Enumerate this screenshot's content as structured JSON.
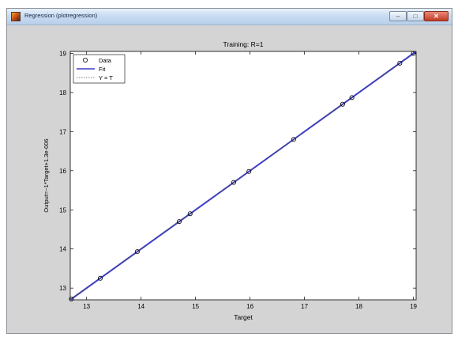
{
  "window": {
    "title": "Regression (plotregression)",
    "minimize_glyph": "‒",
    "maximize_glyph": "□",
    "close_glyph": "✕"
  },
  "chart_data": {
    "type": "scatter",
    "title": "Training: R=1",
    "xlabel": "Target",
    "ylabel": "Output=~1*Target+1.3e-006",
    "xlim": [
      12.7,
      19.05
    ],
    "ylim": [
      12.7,
      19.05
    ],
    "xticks": [
      13,
      14,
      15,
      16,
      17,
      18,
      19
    ],
    "yticks": [
      13,
      14,
      15,
      16,
      17,
      18,
      19
    ],
    "series": [
      {
        "name": "Data",
        "marker": "circle",
        "points": [
          [
            12.72,
            12.72
          ],
          [
            13.25,
            13.25
          ],
          [
            13.93,
            13.93
          ],
          [
            14.7,
            14.7
          ],
          [
            14.9,
            14.9
          ],
          [
            15.7,
            15.7
          ],
          [
            15.98,
            15.98
          ],
          [
            16.8,
            16.8
          ],
          [
            17.7,
            17.7
          ],
          [
            17.87,
            17.87
          ],
          [
            18.75,
            18.75
          ],
          [
            19.0,
            19.0
          ]
        ]
      },
      {
        "name": "Fit",
        "style": "solid",
        "color": "#3a3acc",
        "line": [
          [
            12.7,
            12.7
          ],
          [
            19.05,
            19.05
          ]
        ]
      },
      {
        "name": "Y = T",
        "style": "dotted",
        "color": "#555555",
        "line": [
          [
            12.7,
            12.7
          ],
          [
            19.05,
            19.05
          ]
        ]
      }
    ],
    "legend": {
      "placement": "top-left",
      "entries": [
        "Data",
        "Fit",
        "Y = T"
      ]
    },
    "grid": false
  }
}
